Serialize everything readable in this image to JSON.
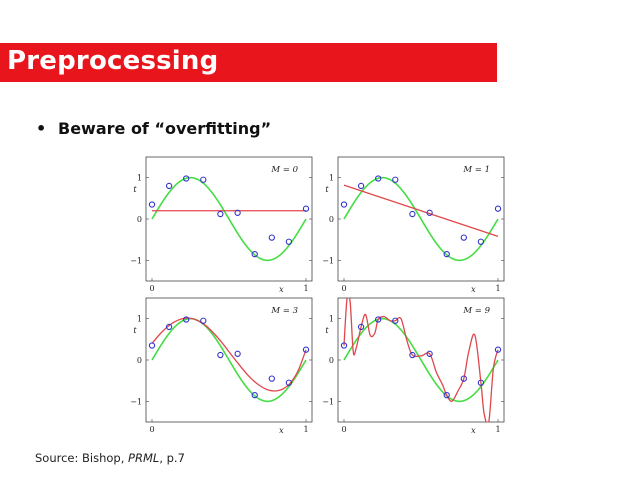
{
  "slide": {
    "title": "Preprocessing",
    "bullet_mark": "•",
    "bullet_text": "Beware of “overfitting”",
    "source_prefix": "Source: Bishop, ",
    "source_book": "PRML",
    "source_suffix": ", p.7"
  },
  "colors": {
    "title_bg": "#e8161c",
    "truth_curve": "#44dd44",
    "fit_curve": "#e0474c",
    "points": "#3333cc"
  },
  "chart_data": [
    {
      "type": "scatter",
      "title": "M = 0",
      "xlabel": "x",
      "ylabel": "t",
      "xlim": [
        0,
        1
      ],
      "ylim": [
        -1.5,
        1.5
      ],
      "x_ticks": [
        "0",
        "1"
      ],
      "y_ticks": [
        "1",
        "0",
        "−1"
      ],
      "points": {
        "x": [
          0,
          0.111,
          0.222,
          0.333,
          0.444,
          0.556,
          0.667,
          0.778,
          0.889,
          1.0
        ],
        "y": [
          0.35,
          0.8,
          0.98,
          0.95,
          0.12,
          0.15,
          -0.85,
          -0.45,
          -0.55,
          0.25
        ]
      },
      "series": [
        {
          "role": "ground-truth",
          "function": "sin(2*pi*x)"
        },
        {
          "role": "fit",
          "x": [
            0,
            1
          ],
          "y": [
            0.2,
            0.2
          ]
        }
      ]
    },
    {
      "type": "scatter",
      "title": "M = 1",
      "xlabel": "x",
      "ylabel": "t",
      "xlim": [
        0,
        1
      ],
      "ylim": [
        -1.5,
        1.5
      ],
      "x_ticks": [
        "0",
        "1"
      ],
      "y_ticks": [
        "1",
        "0",
        "−1"
      ],
      "points": {
        "x": [
          0,
          0.111,
          0.222,
          0.333,
          0.444,
          0.556,
          0.667,
          0.778,
          0.889,
          1.0
        ],
        "y": [
          0.35,
          0.8,
          0.98,
          0.95,
          0.12,
          0.15,
          -0.85,
          -0.45,
          -0.55,
          0.25
        ]
      },
      "series": [
        {
          "role": "ground-truth",
          "function": "sin(2*pi*x)"
        },
        {
          "role": "fit",
          "x": [
            0,
            1
          ],
          "y": [
            0.82,
            -0.42
          ]
        }
      ]
    },
    {
      "type": "scatter",
      "title": "M = 3",
      "xlabel": "x",
      "ylabel": "t",
      "xlim": [
        0,
        1
      ],
      "ylim": [
        -1.5,
        1.5
      ],
      "x_ticks": [
        "0",
        "1"
      ],
      "y_ticks": [
        "1",
        "0",
        "−1"
      ],
      "points": {
        "x": [
          0,
          0.111,
          0.222,
          0.333,
          0.444,
          0.556,
          0.667,
          0.778,
          0.889,
          1.0
        ],
        "y": [
          0.35,
          0.8,
          0.98,
          0.95,
          0.12,
          0.15,
          -0.85,
          -0.45,
          -0.55,
          0.25
        ]
      },
      "series": [
        {
          "role": "ground-truth",
          "function": "sin(2*pi*x)"
        },
        {
          "role": "fit",
          "x": [
            0,
            0.05,
            0.1,
            0.15,
            0.2,
            0.25,
            0.3,
            0.35,
            0.4,
            0.45,
            0.5,
            0.55,
            0.6,
            0.65,
            0.7,
            0.75,
            0.8,
            0.85,
            0.9,
            0.95,
            1.0
          ],
          "y": [
            0.4,
            0.62,
            0.8,
            0.93,
            1.0,
            1.01,
            0.95,
            0.83,
            0.65,
            0.44,
            0.2,
            -0.04,
            -0.27,
            -0.47,
            -0.62,
            -0.72,
            -0.75,
            -0.7,
            -0.55,
            -0.25,
            0.25
          ]
        }
      ]
    },
    {
      "type": "scatter",
      "title": "M = 9",
      "xlabel": "x",
      "ylabel": "t",
      "xlim": [
        0,
        1
      ],
      "ylim": [
        -1.5,
        1.5
      ],
      "x_ticks": [
        "0",
        "1"
      ],
      "y_ticks": [
        "1",
        "0",
        "−1"
      ],
      "points": {
        "x": [
          0,
          0.111,
          0.222,
          0.333,
          0.444,
          0.556,
          0.667,
          0.778,
          0.889,
          1.0
        ],
        "y": [
          0.35,
          0.8,
          0.98,
          0.95,
          0.12,
          0.15,
          -0.85,
          -0.45,
          -0.55,
          0.25
        ]
      },
      "series": [
        {
          "role": "ground-truth",
          "function": "sin(2*pi*x)"
        },
        {
          "role": "fit",
          "x": [
            0,
            0.02,
            0.04,
            0.06,
            0.08,
            0.111,
            0.14,
            0.17,
            0.2,
            0.222,
            0.26,
            0.3,
            0.333,
            0.37,
            0.41,
            0.444,
            0.5,
            0.556,
            0.6,
            0.64,
            0.667,
            0.7,
            0.74,
            0.778,
            0.81,
            0.85,
            0.889,
            0.91,
            0.94,
            0.97,
            1.0
          ],
          "y": [
            0.35,
            1.5,
            1.4,
            0.2,
            0.3,
            0.8,
            1.1,
            0.6,
            0.65,
            0.98,
            1.05,
            0.95,
            0.95,
            1.0,
            0.45,
            0.12,
            0.1,
            0.15,
            -0.3,
            -0.6,
            -0.85,
            -1.0,
            -0.75,
            -0.45,
            0.2,
            0.6,
            -0.55,
            -1.3,
            -1.5,
            -0.2,
            0.25
          ]
        }
      ]
    }
  ]
}
